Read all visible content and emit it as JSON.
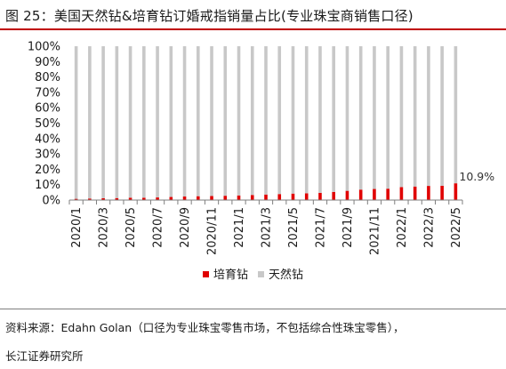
{
  "title": "图 25：美国天然钻&培育钻订婚戒指销量占比(专业珠宝商销售口径)",
  "source": "资料来源：Edahn Golan（口径为专业珠宝零售市场，不包括综合性珠宝零售），",
  "publisher": "长江证券研究所",
  "colors": {
    "lab": "#e00000",
    "natural": "#c8c8c8",
    "accent": "#c00000",
    "axis": "#7f7f7f"
  },
  "chart_data": {
    "type": "bar",
    "stacked": true,
    "normalized": true,
    "categories": [
      "2020/1",
      "2020/2",
      "2020/3",
      "2020/4",
      "2020/5",
      "2020/6",
      "2020/7",
      "2020/8",
      "2020/9",
      "2020/10",
      "2020/11",
      "2020/12",
      "2021/1",
      "2021/2",
      "2021/3",
      "2021/4",
      "2021/5",
      "2021/6",
      "2021/7",
      "2021/8",
      "2021/9",
      "2021/10",
      "2021/11",
      "2021/12",
      "2022/1",
      "2022/2",
      "2022/3",
      "2022/4",
      "2022/5"
    ],
    "x_tick_labels": [
      "2020/1",
      "2020/3",
      "2020/5",
      "2020/7",
      "2020/9",
      "2020/11",
      "2021/1",
      "2021/3",
      "2021/5",
      "2021/7",
      "2021/9",
      "2021/11",
      "2022/1",
      "2022/3",
      "2022/5"
    ],
    "series": [
      {
        "name": "培育钻",
        "values": [
          0.8,
          1.0,
          1.2,
          1.3,
          1.5,
          1.5,
          1.7,
          2.0,
          2.3,
          2.5,
          2.6,
          2.8,
          3.0,
          3.3,
          3.6,
          3.9,
          4.2,
          4.4,
          4.7,
          5.3,
          6.0,
          6.8,
          7.2,
          7.4,
          8.4,
          8.8,
          9.2,
          9.3,
          10.9
        ]
      },
      {
        "name": "天然钻",
        "values": [
          99.2,
          99.0,
          98.8,
          98.7,
          98.5,
          98.5,
          98.3,
          98.0,
          97.7,
          97.5,
          97.4,
          97.2,
          97.0,
          96.7,
          96.4,
          96.1,
          95.8,
          95.6,
          95.3,
          94.7,
          94.0,
          93.2,
          92.8,
          92.6,
          91.6,
          91.2,
          90.8,
          90.7,
          89.1
        ]
      }
    ],
    "y_ticks": [
      "0%",
      "10%",
      "20%",
      "30%",
      "40%",
      "50%",
      "60%",
      "70%",
      "80%",
      "90%",
      "100%"
    ],
    "ylim": [
      0,
      100
    ],
    "annotations": [
      {
        "category": "2022/5",
        "series": "培育钻",
        "text": "10.9%"
      }
    ],
    "legend_position": "bottom-center",
    "grid": false
  }
}
